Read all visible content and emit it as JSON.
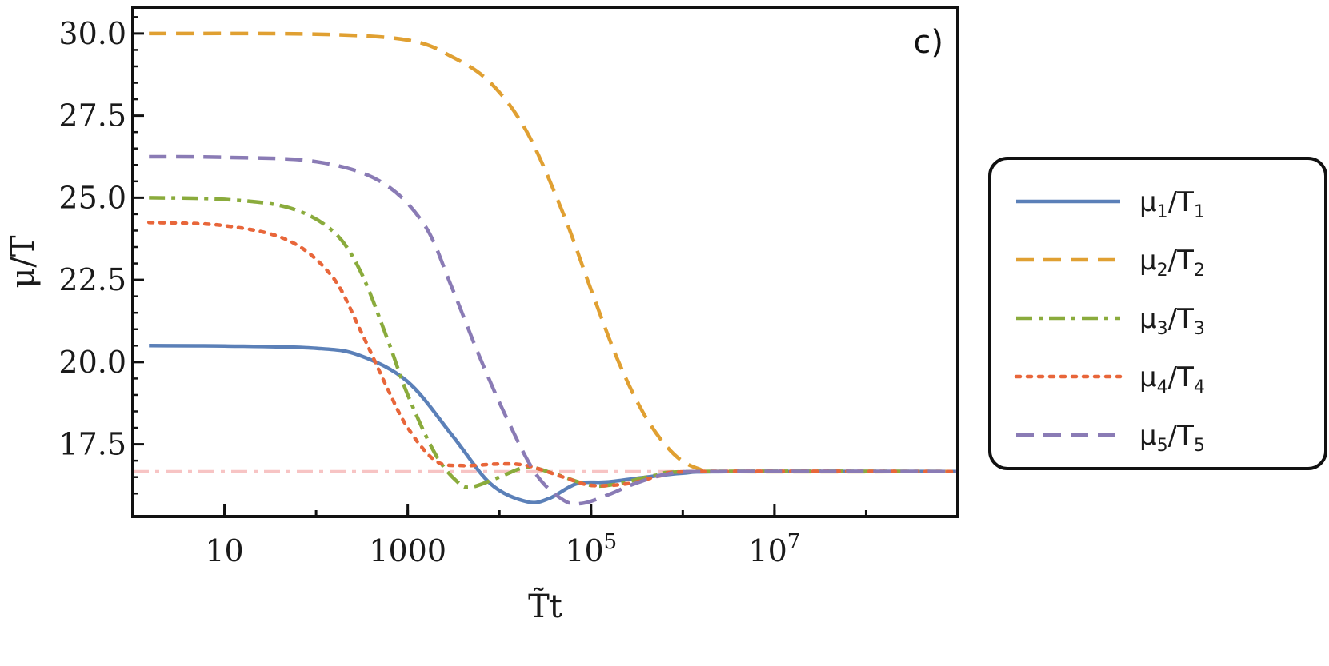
{
  "chart_data": {
    "type": "line",
    "panel_label": "c)",
    "xlabel": "T̃t",
    "ylabel": "μ/T",
    "xscale": "log",
    "xlim": [
      1,
      1000000000
    ],
    "ylim": [
      15.3,
      30.8
    ],
    "x_ticks": [
      {
        "value": 10,
        "base": "10",
        "exp": ""
      },
      {
        "value": 1000,
        "base": "1000",
        "exp": ""
      },
      {
        "value": 100000,
        "base": "10",
        "exp": "5"
      },
      {
        "value": 10000000,
        "base": "10",
        "exp": "7"
      }
    ],
    "y_ticks": [
      {
        "value": 17.5,
        "label": "17.5"
      },
      {
        "value": 20.0,
        "label": "20.0"
      },
      {
        "value": 22.5,
        "label": "22.5"
      },
      {
        "value": 25.0,
        "label": "25.0"
      },
      {
        "value": 27.5,
        "label": "27.5"
      },
      {
        "value": 30.0,
        "label": "30.0"
      }
    ],
    "reference_line": {
      "y": 16.67,
      "color": "#f7c4c4",
      "dash": "dashdot"
    },
    "legend_position": "right",
    "series": [
      {
        "name": "μ1/T1",
        "label_base": "μ",
        "label_sub1": "1",
        "label_mid": "/T",
        "label_sub2": "1",
        "color": "#5b80b8",
        "dash": "solid",
        "points": [
          [
            1.5,
            20.5
          ],
          [
            10,
            20.49
          ],
          [
            100,
            20.42
          ],
          [
            300,
            20.2
          ],
          [
            1000,
            19.4
          ],
          [
            3000,
            17.8
          ],
          [
            8000,
            16.3
          ],
          [
            20000,
            15.75
          ],
          [
            35000,
            15.85
          ],
          [
            70000,
            16.3
          ],
          [
            150000,
            16.35
          ],
          [
            400000,
            16.5
          ],
          [
            1000000,
            16.62
          ],
          [
            3000000,
            16.67
          ],
          [
            1000000000,
            16.67
          ]
        ]
      },
      {
        "name": "μ2/T2",
        "label_base": "μ",
        "label_sub1": "2",
        "label_mid": "/T",
        "label_sub2": "2",
        "color": "#e0a032",
        "dash": "dashed",
        "points": [
          [
            1.5,
            30.0
          ],
          [
            100,
            29.98
          ],
          [
            1000,
            29.8
          ],
          [
            3000,
            29.3
          ],
          [
            8000,
            28.5
          ],
          [
            20000,
            27.0
          ],
          [
            50000,
            24.5
          ],
          [
            100000,
            22.2
          ],
          [
            200000,
            20.0
          ],
          [
            400000,
            18.3
          ],
          [
            800000,
            17.2
          ],
          [
            1500000,
            16.75
          ],
          [
            3000000,
            16.67
          ],
          [
            1000000000,
            16.67
          ]
        ]
      },
      {
        "name": "μ3/T3",
        "label_base": "μ",
        "label_sub1": "3",
        "label_mid": "/T",
        "label_sub2": "3",
        "color": "#8aab3c",
        "dash": "dashdot",
        "points": [
          [
            1.5,
            25.0
          ],
          [
            10,
            24.95
          ],
          [
            50,
            24.7
          ],
          [
            150,
            24.0
          ],
          [
            300,
            22.8
          ],
          [
            600,
            20.7
          ],
          [
            1000,
            19.0
          ],
          [
            2000,
            17.2
          ],
          [
            3500,
            16.35
          ],
          [
            5000,
            16.2
          ],
          [
            10000,
            16.5
          ],
          [
            20000,
            16.8
          ],
          [
            40000,
            16.6
          ],
          [
            100000,
            16.25
          ],
          [
            200000,
            16.3
          ],
          [
            500000,
            16.55
          ],
          [
            1500000,
            16.67
          ],
          [
            1000000000,
            16.67
          ]
        ]
      },
      {
        "name": "μ4/T4",
        "label_base": "μ",
        "label_sub1": "4",
        "label_mid": "/T",
        "label_sub2": "4",
        "color": "#e8663a",
        "dash": "dotted",
        "points": [
          [
            1.5,
            24.25
          ],
          [
            10,
            24.15
          ],
          [
            50,
            23.7
          ],
          [
            150,
            22.6
          ],
          [
            300,
            21.0
          ],
          [
            600,
            19.2
          ],
          [
            1000,
            18.0
          ],
          [
            2000,
            17.0
          ],
          [
            4000,
            16.85
          ],
          [
            10000,
            16.9
          ],
          [
            20000,
            16.85
          ],
          [
            50000,
            16.5
          ],
          [
            100000,
            16.25
          ],
          [
            250000,
            16.3
          ],
          [
            600000,
            16.55
          ],
          [
            1500000,
            16.67
          ],
          [
            1000000000,
            16.67
          ]
        ]
      },
      {
        "name": "μ5/T5",
        "label_base": "μ",
        "label_sub1": "5",
        "label_mid": "/T",
        "label_sub2": "5",
        "color": "#8a7bb5",
        "dash": "dashed",
        "points": [
          [
            1.5,
            26.25
          ],
          [
            10,
            26.23
          ],
          [
            100,
            26.1
          ],
          [
            500,
            25.5
          ],
          [
            1500,
            24.2
          ],
          [
            3000,
            22.3
          ],
          [
            6000,
            20.2
          ],
          [
            12000,
            18.3
          ],
          [
            25000,
            16.6
          ],
          [
            50000,
            15.8
          ],
          [
            80000,
            15.7
          ],
          [
            150000,
            15.95
          ],
          [
            300000,
            16.3
          ],
          [
            700000,
            16.6
          ],
          [
            2000000,
            16.67
          ],
          [
            1000000000,
            16.67
          ]
        ]
      }
    ]
  }
}
